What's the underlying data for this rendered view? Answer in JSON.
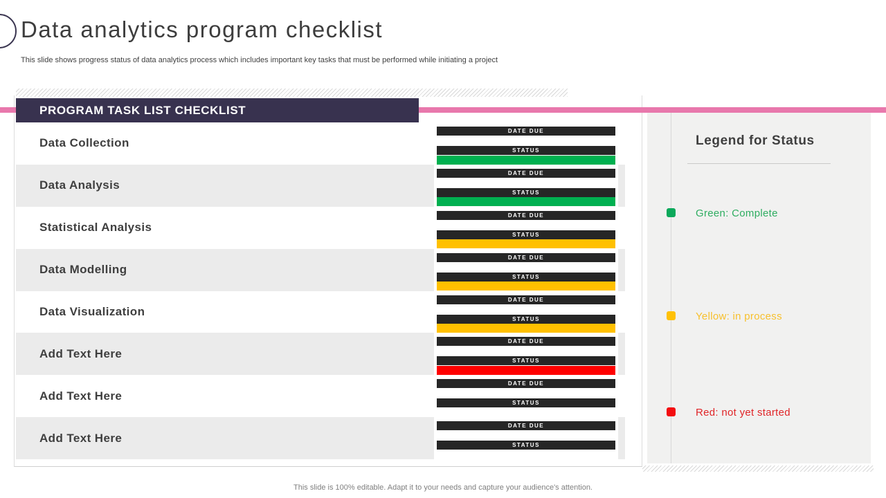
{
  "slide": {
    "title": "Data analytics program checklist",
    "subtitle": "This slide shows progress status of data analytics process which includes important key tasks that must be performed while initiating a project",
    "footer": "This slide is 100% editable. Adapt it to your needs and capture your audience's attention."
  },
  "checklist": {
    "header": "PROGRAM TASK LIST CHECKLIST",
    "date_due_label": "DATE DUE",
    "status_label": "STATUS",
    "rows": [
      {
        "task": "Data Collection",
        "status": "green"
      },
      {
        "task": "Data Analysis",
        "status": "green"
      },
      {
        "task": "Statistical Analysis",
        "status": "yellow"
      },
      {
        "task": "Data Modelling",
        "status": "yellow"
      },
      {
        "task": "Data Visualization",
        "status": "yellow"
      },
      {
        "task": "Add Text Here",
        "status": "red"
      },
      {
        "task": "Add Text Here",
        "status": "none"
      },
      {
        "task": "Add Text Here",
        "status": "none"
      }
    ]
  },
  "legend": {
    "title": "Legend for Status",
    "items": [
      {
        "label": "Green: Complete",
        "swatch": "#0ca95b",
        "text_color": "#2fad61"
      },
      {
        "label": "Yellow: in process",
        "swatch": "#ffc107",
        "text_color": "#f7c02d"
      },
      {
        "label": "Red: not yet started",
        "swatch": "#f30d10",
        "text_color": "#e02528"
      }
    ]
  },
  "colors": {
    "green": "#00b050",
    "yellow": "#ffc000",
    "red": "#ff0000",
    "bar_dark": "#262626",
    "header_bg": "#38324f",
    "accent_pink": "#e878ac"
  }
}
